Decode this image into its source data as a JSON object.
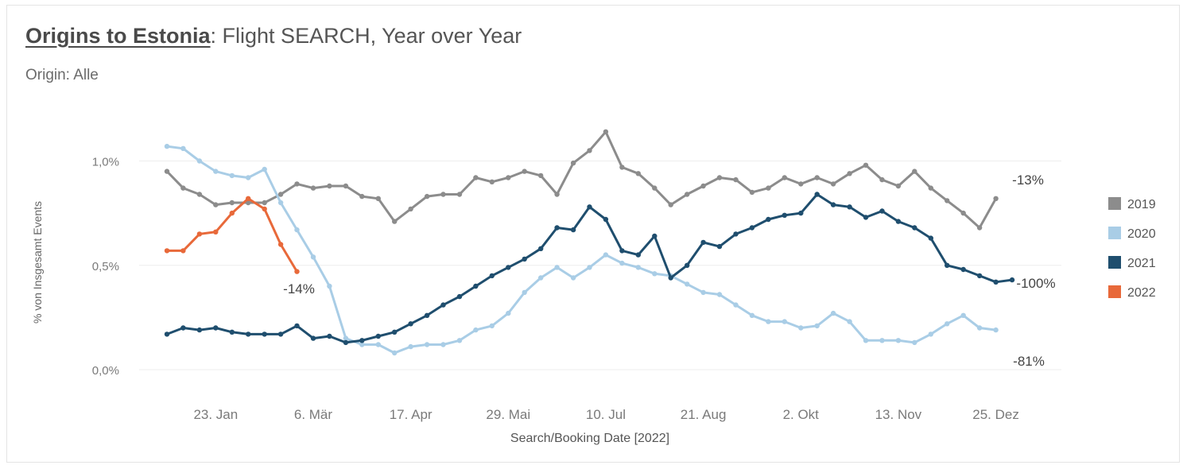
{
  "header": {
    "title_link": "Origins to Estonia",
    "title_rest": ": Flight SEARCH, Year over Year",
    "subtitle": "Origin: Alle"
  },
  "colors": {
    "2019": "#8c8c8c",
    "2020": "#a9cde6",
    "2021": "#1f4e6e",
    "2022": "#e8693a",
    "grid": "#eeeeee",
    "axis_text": "#7a7a7a"
  },
  "chart_data": {
    "type": "line",
    "xlabel": "Search/Booking Date [2022]",
    "ylabel": "% von Insgesamt Events",
    "x_ticks": [
      "23. Jan",
      "6. Mär",
      "17. Apr",
      "29. Mai",
      "10. Jul",
      "21. Aug",
      "2. Okt",
      "13. Nov",
      "25. Dez"
    ],
    "y_ticks": [
      "0,0%",
      "0,5%",
      "1,0%"
    ],
    "ylim": [
      0,
      1.2
    ],
    "grid": true,
    "legend_position": "right",
    "series": [
      {
        "name": "2019",
        "color_key": "2019",
        "end_label": "-13%",
        "values": [
          0.95,
          0.87,
          0.84,
          0.79,
          0.8,
          0.8,
          0.8,
          0.84,
          0.89,
          0.87,
          0.88,
          0.88,
          0.83,
          0.82,
          0.71,
          0.77,
          0.83,
          0.84,
          0.84,
          0.92,
          0.9,
          0.92,
          0.95,
          0.93,
          0.84,
          0.99,
          1.05,
          1.14,
          0.97,
          0.94,
          0.87,
          0.79,
          0.84,
          0.88,
          0.92,
          0.91,
          0.85,
          0.87,
          0.92,
          0.89,
          0.92,
          0.89,
          0.94,
          0.98,
          0.91,
          0.88,
          0.95,
          0.87,
          0.81,
          0.75,
          0.68,
          0.82
        ]
      },
      {
        "name": "2020",
        "color_key": "2020",
        "end_label": "-81%",
        "values": [
          1.07,
          1.06,
          1.0,
          0.95,
          0.93,
          0.92,
          0.96,
          0.8,
          0.67,
          0.54,
          0.4,
          0.15,
          0.12,
          0.12,
          0.08,
          0.11,
          0.12,
          0.12,
          0.14,
          0.19,
          0.21,
          0.27,
          0.37,
          0.44,
          0.49,
          0.44,
          0.49,
          0.55,
          0.51,
          0.49,
          0.46,
          0.45,
          0.41,
          0.37,
          0.36,
          0.31,
          0.26,
          0.23,
          0.23,
          0.2,
          0.21,
          0.27,
          0.23,
          0.14,
          0.14,
          0.14,
          0.13,
          0.17,
          0.22,
          0.26,
          0.2,
          0.19
        ]
      },
      {
        "name": "2021",
        "color_key": "2021",
        "end_label": "-100%",
        "values": [
          0.17,
          0.2,
          0.19,
          0.2,
          0.18,
          0.17,
          0.17,
          0.17,
          0.21,
          0.15,
          0.16,
          0.13,
          0.14,
          0.16,
          0.18,
          0.22,
          0.26,
          0.31,
          0.35,
          0.4,
          0.45,
          0.49,
          0.53,
          0.58,
          0.68,
          0.67,
          0.78,
          0.72,
          0.57,
          0.55,
          0.64,
          0.44,
          0.5,
          0.61,
          0.59,
          0.65,
          0.68,
          0.72,
          0.74,
          0.75,
          0.84,
          0.79,
          0.78,
          0.73,
          0.76,
          0.71,
          0.68,
          0.63,
          0.5,
          0.48,
          0.45,
          0.42,
          0.43
        ]
      },
      {
        "name": "2022",
        "color_key": "2022",
        "end_label": "-14%",
        "values": [
          0.57,
          0.57,
          0.65,
          0.66,
          0.75,
          0.82,
          0.77,
          0.6,
          0.47
        ]
      }
    ]
  }
}
